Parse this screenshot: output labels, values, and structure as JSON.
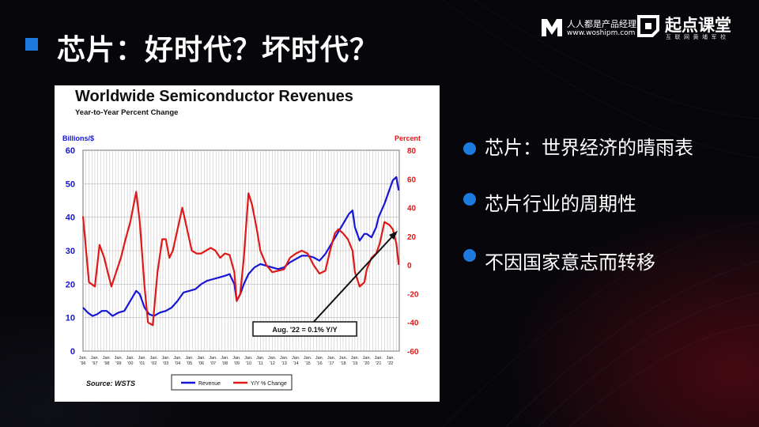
{
  "slide": {
    "title": "芯片：好时代？坏时代？"
  },
  "logos": {
    "woshipm_name": "人人都是产品经理",
    "woshipm_url": "www.woshipm.com",
    "qidian_name": "起点课堂",
    "qidian_sub": "互联网黄埔军校"
  },
  "bullets": [
    "芯片：世界经济的晴雨表",
    "芯片行业的周期性",
    "不因国家意志而转移"
  ],
  "colors": {
    "background": "#07070b",
    "accent_blue": "#1f7ae0",
    "revenue_line": "#1515d6",
    "yoy_line": "#e01818"
  },
  "chart_data": {
    "type": "line",
    "title": "Worldwide Semiconductor Revenues",
    "subtitle": "Year-to-Year Percent Change",
    "y_left_label": "Billions/$",
    "y_right_label": "Percent",
    "y_left_ticks": [
      0,
      10,
      20,
      30,
      40,
      50,
      60
    ],
    "y_right_ticks": [
      80,
      60,
      40,
      20,
      0,
      -20,
      -40,
      -60
    ],
    "ylim_left": [
      0,
      60
    ],
    "ylim_right": [
      -60,
      80
    ],
    "x_range": [
      1996,
      2022.75
    ],
    "x_tick_top": "Jan.",
    "x_ticks": [
      "'96",
      "'97",
      "'98",
      "'99",
      "'00",
      "'01",
      "'02",
      "'03",
      "'04",
      "'05",
      "'06",
      "'07",
      "'08",
      "'09",
      "'10",
      "'11",
      "'12",
      "'13",
      "'14",
      "'15",
      "'16",
      "'17",
      "'18",
      "'19",
      "'20",
      "'21",
      "'22"
    ],
    "grid": true,
    "source": "Source: WSTS",
    "annotation": "Aug. '22 = 0.1% Y/Y",
    "series": [
      {
        "name": "Revenue",
        "axis": "left",
        "color": "#1515d6",
        "points": [
          [
            1996.0,
            13
          ],
          [
            1996.4,
            11.5
          ],
          [
            1996.8,
            10.5
          ],
          [
            1997.2,
            11
          ],
          [
            1997.6,
            12
          ],
          [
            1998.0,
            12
          ],
          [
            1998.5,
            10.5
          ],
          [
            1999.0,
            11.5
          ],
          [
            1999.5,
            12
          ],
          [
            2000.0,
            15
          ],
          [
            2000.5,
            18
          ],
          [
            2000.8,
            17
          ],
          [
            2001.2,
            13
          ],
          [
            2001.6,
            11
          ],
          [
            2002.0,
            10.5
          ],
          [
            2002.5,
            11.5
          ],
          [
            2003.0,
            12
          ],
          [
            2003.5,
            13
          ],
          [
            2004.0,
            15
          ],
          [
            2004.5,
            17.5
          ],
          [
            2005.0,
            18
          ],
          [
            2005.5,
            18.5
          ],
          [
            2006.0,
            20
          ],
          [
            2006.5,
            21
          ],
          [
            2007.0,
            21.5
          ],
          [
            2007.5,
            22
          ],
          [
            2008.0,
            22.5
          ],
          [
            2008.4,
            23
          ],
          [
            2008.8,
            20
          ],
          [
            2009.0,
            15
          ],
          [
            2009.3,
            17
          ],
          [
            2009.6,
            20
          ],
          [
            2010.0,
            23
          ],
          [
            2010.5,
            25
          ],
          [
            2011.0,
            26
          ],
          [
            2011.5,
            25.5
          ],
          [
            2012.0,
            25
          ],
          [
            2012.5,
            24.5
          ],
          [
            2013.0,
            25
          ],
          [
            2013.5,
            26.5
          ],
          [
            2014.0,
            27.5
          ],
          [
            2014.5,
            28.5
          ],
          [
            2015.0,
            28.5
          ],
          [
            2015.5,
            28
          ],
          [
            2016.0,
            27
          ],
          [
            2016.5,
            29
          ],
          [
            2017.0,
            32
          ],
          [
            2017.5,
            35
          ],
          [
            2018.0,
            38
          ],
          [
            2018.5,
            41
          ],
          [
            2018.8,
            42
          ],
          [
            2019.0,
            37
          ],
          [
            2019.4,
            33
          ],
          [
            2019.8,
            35
          ],
          [
            2020.0,
            35
          ],
          [
            2020.4,
            34
          ],
          [
            2020.8,
            37
          ],
          [
            2021.0,
            40
          ],
          [
            2021.5,
            44
          ],
          [
            2021.9,
            48
          ],
          [
            2022.2,
            51
          ],
          [
            2022.5,
            52
          ],
          [
            2022.7,
            48
          ]
        ]
      },
      {
        "name": "Y/Y % Change",
        "axis": "right",
        "color": "#e01818",
        "points": [
          [
            1996.0,
            34
          ],
          [
            1996.5,
            -12
          ],
          [
            1997.0,
            -15
          ],
          [
            1997.4,
            14
          ],
          [
            1997.8,
            5
          ],
          [
            1998.0,
            -2
          ],
          [
            1998.4,
            -15
          ],
          [
            1998.8,
            -5
          ],
          [
            1999.2,
            5
          ],
          [
            1999.6,
            18
          ],
          [
            2000.0,
            30
          ],
          [
            2000.5,
            51
          ],
          [
            2000.8,
            30
          ],
          [
            2001.2,
            -15
          ],
          [
            2001.5,
            -40
          ],
          [
            2001.9,
            -42
          ],
          [
            2002.3,
            -5
          ],
          [
            2002.7,
            18
          ],
          [
            2003.0,
            18
          ],
          [
            2003.3,
            5
          ],
          [
            2003.6,
            10
          ],
          [
            2004.0,
            25
          ],
          [
            2004.4,
            40
          ],
          [
            2004.8,
            25
          ],
          [
            2005.2,
            10
          ],
          [
            2005.6,
            8
          ],
          [
            2006.0,
            8
          ],
          [
            2006.4,
            10
          ],
          [
            2006.8,
            12
          ],
          [
            2007.2,
            10
          ],
          [
            2007.6,
            5
          ],
          [
            2008.0,
            8
          ],
          [
            2008.4,
            7
          ],
          [
            2008.8,
            -5
          ],
          [
            2009.0,
            -25
          ],
          [
            2009.3,
            -20
          ],
          [
            2009.6,
            5
          ],
          [
            2010.0,
            50
          ],
          [
            2010.3,
            42
          ],
          [
            2010.7,
            25
          ],
          [
            2011.0,
            10
          ],
          [
            2011.5,
            0
          ],
          [
            2012.0,
            -5
          ],
          [
            2012.5,
            -4
          ],
          [
            2013.0,
            -3
          ],
          [
            2013.5,
            5
          ],
          [
            2014.0,
            8
          ],
          [
            2014.5,
            10
          ],
          [
            2015.0,
            8
          ],
          [
            2015.5,
            0
          ],
          [
            2016.0,
            -6
          ],
          [
            2016.5,
            -4
          ],
          [
            2016.9,
            10
          ],
          [
            2017.3,
            22
          ],
          [
            2017.6,
            25
          ],
          [
            2018.0,
            22
          ],
          [
            2018.4,
            18
          ],
          [
            2018.8,
            10
          ],
          [
            2019.0,
            -5
          ],
          [
            2019.4,
            -15
          ],
          [
            2019.8,
            -12
          ],
          [
            2020.0,
            -3
          ],
          [
            2020.4,
            5
          ],
          [
            2020.8,
            8
          ],
          [
            2021.1,
            15
          ],
          [
            2021.5,
            30
          ],
          [
            2021.9,
            28
          ],
          [
            2022.2,
            25
          ],
          [
            2022.5,
            15
          ],
          [
            2022.7,
            0.1
          ]
        ]
      }
    ]
  }
}
